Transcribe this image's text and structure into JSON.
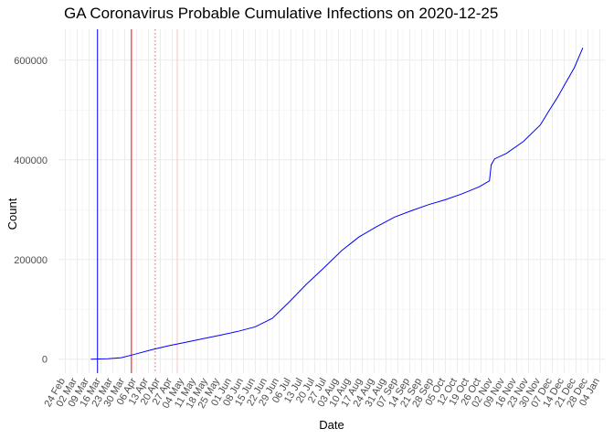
{
  "chart_data": {
    "type": "line",
    "title": "GA Coronavirus Probable Cumulative Infections on 2020-12-25",
    "xlabel": "Date",
    "ylabel": "Count",
    "xlim": [
      "2020-02-20",
      "2021-01-07"
    ],
    "ylim": [
      -28000,
      662000
    ],
    "x_ticks": [
      "2020-02-24",
      "2020-03-02",
      "2020-03-09",
      "2020-03-16",
      "2020-03-23",
      "2020-03-30",
      "2020-04-06",
      "2020-04-13",
      "2020-04-20",
      "2020-04-27",
      "2020-05-04",
      "2020-05-11",
      "2020-05-18",
      "2020-05-25",
      "2020-06-01",
      "2020-06-08",
      "2020-06-15",
      "2020-06-22",
      "2020-06-29",
      "2020-07-06",
      "2020-07-13",
      "2020-07-20",
      "2020-07-27",
      "2020-08-03",
      "2020-08-10",
      "2020-08-17",
      "2020-08-24",
      "2020-08-31",
      "2020-09-07",
      "2020-09-14",
      "2020-09-21",
      "2020-09-28",
      "2020-10-05",
      "2020-10-12",
      "2020-10-19",
      "2020-10-26",
      "2020-11-02",
      "2020-11-09",
      "2020-11-16",
      "2020-11-23",
      "2020-11-30",
      "2020-12-07",
      "2020-12-14",
      "2020-12-21",
      "2020-12-28",
      "2021-01-04"
    ],
    "x_tick_labels": [
      "24 Feb",
      "02 Mar",
      "09 Mar",
      "16 Mar",
      "23 Mar",
      "30 Mar",
      "06 Apr",
      "13 Apr",
      "20 Apr",
      "27 Apr",
      "04 May",
      "11 May",
      "18 May",
      "25 May",
      "01 Jun",
      "08 Jun",
      "15 Jun",
      "22 Jun",
      "29 Jun",
      "06 Jul",
      "13 Jul",
      "20 Jul",
      "27 Jul",
      "03 Aug",
      "10 Aug",
      "17 Aug",
      "24 Aug",
      "31 Aug",
      "07 Sep",
      "14 Sep",
      "21 Sep",
      "28 Sep",
      "05 Oct",
      "12 Oct",
      "19 Oct",
      "26 Oct",
      "02 Nov",
      "09 Nov",
      "16 Nov",
      "23 Nov",
      "30 Nov",
      "07 Dec",
      "14 Dec",
      "21 Dec",
      "28 Dec",
      "04 Jan"
    ],
    "y_ticks": [
      0,
      200000,
      400000,
      600000
    ],
    "y_tick_labels": [
      "0",
      "200000",
      "400000",
      "600000"
    ],
    "vlines": [
      {
        "x": "2020-03-14",
        "color": "#0000ff",
        "style": "solid"
      },
      {
        "x": "2020-04-03",
        "color": "#ff0000",
        "style": "solid"
      },
      {
        "x": "2020-04-17",
        "color": "#e06060",
        "style": "dotted"
      },
      {
        "x": "2020-04-30",
        "color": "#ffc0c0",
        "style": "solid"
      }
    ],
    "series": [
      {
        "color": "#0000ff",
        "x": [
          "2020-03-10",
          "2020-03-20",
          "2020-03-28",
          "2020-04-05",
          "2020-04-15",
          "2020-04-25",
          "2020-05-05",
          "2020-05-15",
          "2020-05-25",
          "2020-06-05",
          "2020-06-15",
          "2020-06-25",
          "2020-07-05",
          "2020-07-15",
          "2020-07-25",
          "2020-08-05",
          "2020-08-15",
          "2020-08-25",
          "2020-09-05",
          "2020-09-15",
          "2020-09-25",
          "2020-10-05",
          "2020-10-15",
          "2020-10-25",
          "2020-10-31",
          "2020-11-01",
          "2020-11-03",
          "2020-11-10",
          "2020-11-20",
          "2020-11-30",
          "2020-12-05",
          "2020-12-10",
          "2020-12-15",
          "2020-12-20",
          "2020-12-25"
        ],
        "values": [
          0,
          800,
          3000,
          10000,
          19000,
          27000,
          34000,
          41000,
          48000,
          56000,
          65000,
          82000,
          115000,
          150000,
          182000,
          218000,
          245000,
          265000,
          285000,
          298000,
          310000,
          320000,
          332000,
          346000,
          358000,
          390000,
          402000,
          413000,
          437000,
          470000,
          498000,
          525000,
          555000,
          585000,
          625000
        ]
      }
    ]
  }
}
